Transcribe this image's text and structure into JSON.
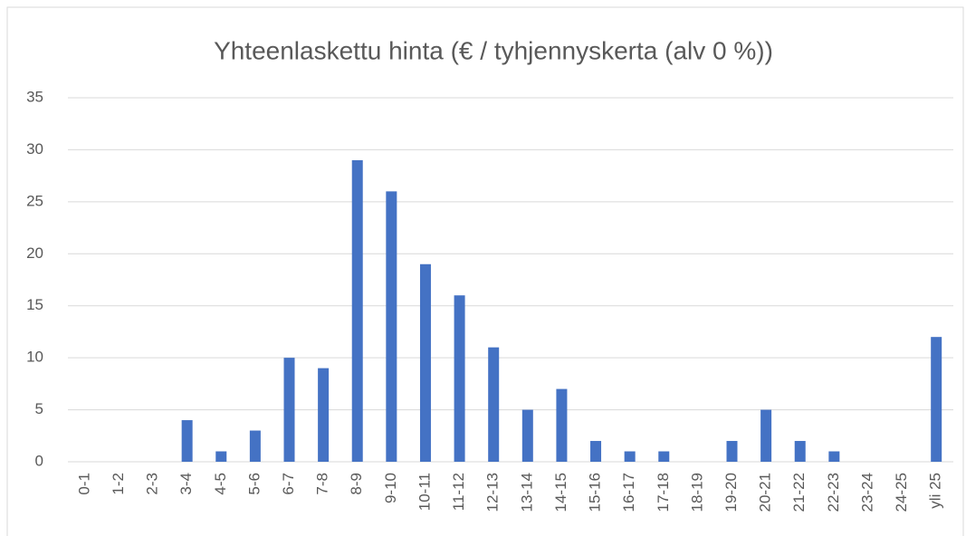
{
  "chart_data": {
    "type": "bar",
    "title": "Yhteenlaskettu hinta (€ / tyhjennyskerta (alv 0 %))",
    "categories": [
      "0-1",
      "1-2",
      "2-3",
      "3-4",
      "4-5",
      "5-6",
      "6-7",
      "7-8",
      "8-9",
      "9-10",
      "10-11",
      "11-12",
      "12-13",
      "13-14",
      "14-15",
      "15-16",
      "16-17",
      "17-18",
      "18-19",
      "19-20",
      "20-21",
      "21-22",
      "22-23",
      "23-24",
      "24-25",
      "yli 25"
    ],
    "values": [
      0,
      0,
      0,
      4,
      1,
      3,
      10,
      9,
      29,
      26,
      19,
      16,
      11,
      5,
      7,
      2,
      1,
      1,
      0,
      2,
      5,
      2,
      1,
      0,
      0,
      12
    ],
    "color": "#4472c4",
    "ylim": [
      0,
      35
    ],
    "yticks": [
      0,
      5,
      10,
      15,
      20,
      25,
      30,
      35
    ],
    "grid": true
  }
}
